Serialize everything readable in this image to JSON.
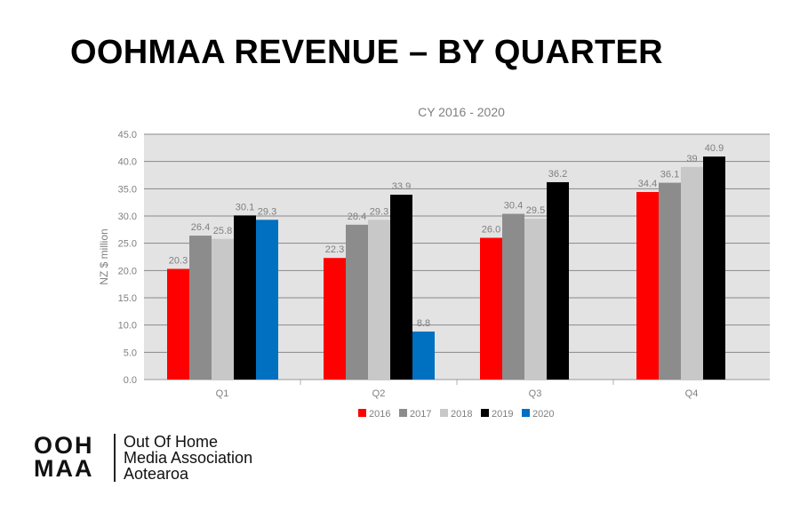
{
  "slide": {
    "title": "OOHMAA REVENUE – BY QUARTER"
  },
  "logo": {
    "mark_line1": "OOH",
    "mark_line2": "MAA",
    "text_lines": [
      "Out Of Home",
      "Media Association",
      "Aotearoa"
    ]
  },
  "chart_data": {
    "type": "bar",
    "title": "CY 2016 - 2020",
    "xlabel": "",
    "ylabel": "NZ $ million",
    "categories": [
      "Q1",
      "Q2",
      "Q3",
      "Q4"
    ],
    "ylim": [
      0,
      45
    ],
    "ytick_step": 5,
    "grid": true,
    "legend_position": "bottom",
    "series": [
      {
        "name": "2016",
        "color": "#ff0000",
        "values": [
          20.3,
          22.3,
          26.0,
          34.4
        ],
        "labels": [
          "20.3",
          "22.3",
          "26.0",
          "34.4"
        ]
      },
      {
        "name": "2017",
        "color": "#8c8c8c",
        "values": [
          26.4,
          28.4,
          30.4,
          36.1
        ],
        "labels": [
          "26.4",
          "28.4",
          "30.4",
          "36.1"
        ]
      },
      {
        "name": "2018",
        "color": "#c8c8c8",
        "values": [
          25.8,
          29.3,
          29.5,
          39
        ],
        "labels": [
          "25.8",
          "29.3",
          "29.5",
          "39"
        ]
      },
      {
        "name": "2019",
        "color": "#000000",
        "values": [
          30.1,
          33.9,
          36.2,
          40.9
        ],
        "labels": [
          "30.1",
          "33.9",
          "36.2",
          "40.9"
        ]
      },
      {
        "name": "2020",
        "color": "#0070c0",
        "values": [
          29.3,
          8.8,
          null,
          null
        ],
        "labels": [
          "29.3",
          "8.8",
          "",
          ""
        ]
      }
    ]
  }
}
